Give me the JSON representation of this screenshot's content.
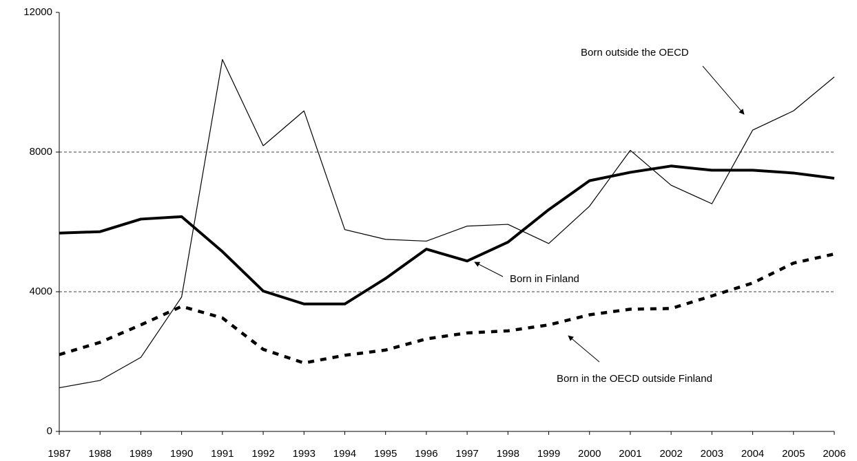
{
  "chart_data": {
    "type": "line",
    "x": [
      1987,
      1988,
      1989,
      1990,
      1991,
      1992,
      1993,
      1994,
      1995,
      1996,
      1997,
      1998,
      1999,
      2000,
      2001,
      2002,
      2003,
      2004,
      2005,
      2006
    ],
    "xlim": [
      1987,
      2006
    ],
    "xticks": [
      1987,
      1988,
      1989,
      1990,
      1991,
      1992,
      1993,
      1994,
      1995,
      1996,
      1997,
      1998,
      1999,
      2000,
      2001,
      2002,
      2003,
      2004,
      2005,
      2006
    ],
    "ylim": [
      0,
      12000
    ],
    "yticks": [
      0,
      4000,
      8000,
      12000
    ],
    "grid": true,
    "series": [
      {
        "name": "Born in Finland",
        "color": "#000000",
        "values": [
          5680,
          5720,
          6080,
          6150,
          5150,
          4020,
          3650,
          3650,
          4380,
          5220,
          4880,
          5420,
          6350,
          7180,
          7420,
          7600,
          7480,
          7480,
          7400,
          7250
        ]
      },
      {
        "name": "Born outside the OECD",
        "color": "#000000",
        "values": [
          1250,
          1460,
          2120,
          3850,
          10650,
          8180,
          9180,
          5780,
          5500,
          5450,
          5880,
          5930,
          5380,
          6450,
          8050,
          7050,
          6520,
          8630,
          9180,
          10150
        ]
      },
      {
        "name": "Born in the OECD outside Finland",
        "color": "#000000",
        "values": [
          2200,
          2550,
          3050,
          3580,
          3250,
          2350,
          1960,
          2180,
          2330,
          2650,
          2820,
          2880,
          3050,
          3340,
          3500,
          3520,
          3880,
          4250,
          4820,
          5080
        ]
      }
    ]
  }
}
